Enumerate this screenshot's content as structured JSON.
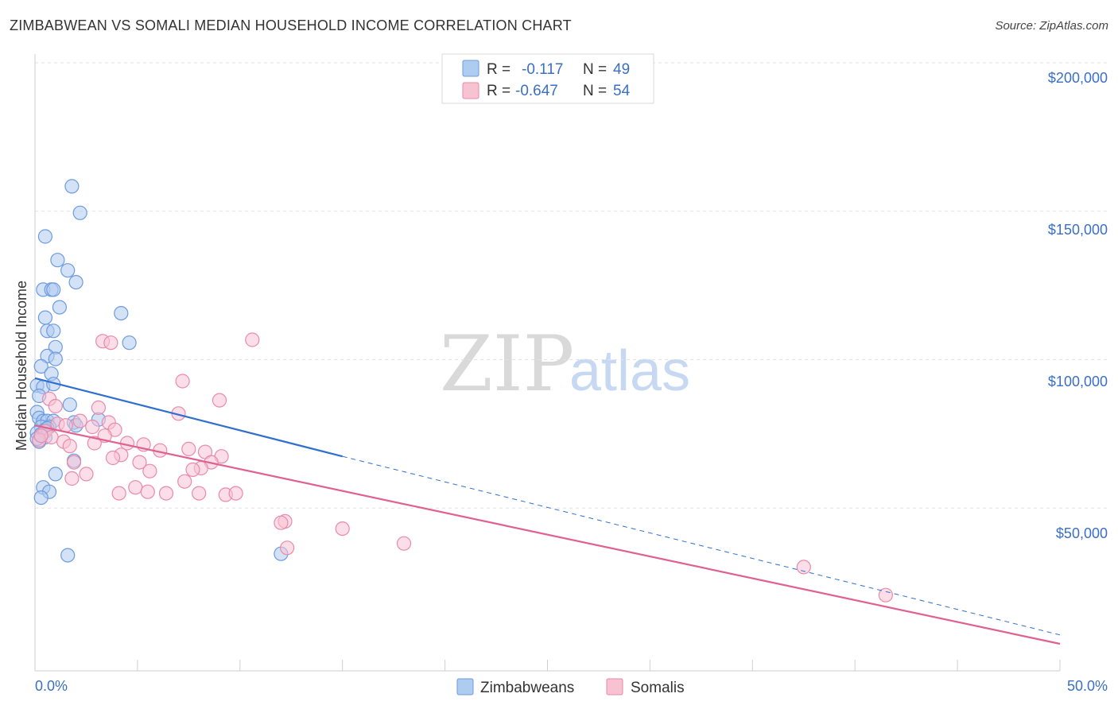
{
  "header": {
    "title": "ZIMBABWEAN VS SOMALI MEDIAN HOUSEHOLD INCOME CORRELATION CHART",
    "source": "Source: ZipAtlas.com"
  },
  "watermark": {
    "zip": "ZIP",
    "atlas": "atlas"
  },
  "colors": {
    "blue_fill": "#aecbf0",
    "blue_stroke": "#6d9be0",
    "blue_line": "#2f6fcf",
    "pink_fill": "#f7c3d3",
    "pink_stroke": "#e98aab",
    "pink_line": "#e0608f",
    "grid": "#e3e3e3",
    "axis_text": "#3b6fc4"
  },
  "legend": {
    "rows": [
      {
        "r_label": "R =",
        "r_value": "-0.117",
        "n_label": "N =",
        "n_value": "49"
      },
      {
        "r_label": "R =",
        "r_value": "-0.647",
        "n_label": "N =",
        "n_value": "54"
      }
    ]
  },
  "chart_data": {
    "type": "scatter",
    "title": "ZIMBABWEAN VS SOMALI MEDIAN HOUSEHOLD INCOME CORRELATION CHART",
    "xlabel": "",
    "ylabel": "Median Household Income",
    "xlim": [
      0,
      50
    ],
    "ylim": [
      0,
      205000
    ],
    "x_tick_labels": [
      "0.0%",
      "50.0%"
    ],
    "y_ticks": [
      50000,
      100000,
      150000,
      200000
    ],
    "y_tick_labels": [
      "$50,000",
      "$100,000",
      "$150,000",
      "$200,000"
    ],
    "grid": true,
    "legend_position": "top-center",
    "series": [
      {
        "name": "Zimbabweans",
        "color": "#aecbf0",
        "r": -0.117,
        "n": 49,
        "trend": {
          "x0": 0.0,
          "y0": 98000,
          "x1": 15.0,
          "y1": 71500,
          "dashed_x1": 50.0,
          "dashed_y1": 11000
        },
        "points": [
          [
            1.8,
            163000
          ],
          [
            2.2,
            154000
          ],
          [
            0.5,
            146000
          ],
          [
            1.1,
            138000
          ],
          [
            1.6,
            134500
          ],
          [
            2.0,
            130500
          ],
          [
            0.4,
            128000
          ],
          [
            0.8,
            128000
          ],
          [
            0.9,
            128000
          ],
          [
            1.2,
            122000
          ],
          [
            4.2,
            120000
          ],
          [
            0.5,
            118500
          ],
          [
            0.6,
            114000
          ],
          [
            0.9,
            114000
          ],
          [
            4.6,
            110000
          ],
          [
            1.0,
            108500
          ],
          [
            0.6,
            105500
          ],
          [
            1.0,
            104500
          ],
          [
            0.3,
            102000
          ],
          [
            0.8,
            99500
          ],
          [
            0.1,
            95500
          ],
          [
            0.4,
            95000
          ],
          [
            0.9,
            96000
          ],
          [
            0.2,
            92000
          ],
          [
            1.7,
            89000
          ],
          [
            0.1,
            86500
          ],
          [
            0.2,
            84500
          ],
          [
            0.4,
            83500
          ],
          [
            0.6,
            83500
          ],
          [
            0.9,
            83500
          ],
          [
            1.9,
            83000
          ],
          [
            3.1,
            84000
          ],
          [
            0.3,
            81500
          ],
          [
            0.5,
            80500
          ],
          [
            0.7,
            81500
          ],
          [
            2.0,
            82000
          ],
          [
            0.1,
            79500
          ],
          [
            0.3,
            79000
          ],
          [
            0.5,
            78000
          ],
          [
            0.2,
            76500
          ],
          [
            1.9,
            70000
          ],
          [
            1.0,
            65500
          ],
          [
            0.4,
            61000
          ],
          [
            0.7,
            59500
          ],
          [
            0.3,
            57500
          ],
          [
            1.6,
            38000
          ],
          [
            12.0,
            38500
          ],
          [
            0.1,
            77500
          ],
          [
            0.6,
            81000
          ]
        ]
      },
      {
        "name": "Somalis",
        "color": "#f7c3d3",
        "r": -0.647,
        "n": 54,
        "trend": {
          "x0": 0.0,
          "y0": 82000,
          "x1": 50.0,
          "y1": 8000
        },
        "points": [
          [
            10.6,
            111000
          ],
          [
            3.3,
            110500
          ],
          [
            3.7,
            110000
          ],
          [
            7.2,
            97000
          ],
          [
            9.0,
            90500
          ],
          [
            0.7,
            91000
          ],
          [
            1.0,
            88500
          ],
          [
            3.1,
            88000
          ],
          [
            7.0,
            86000
          ],
          [
            1.1,
            82500
          ],
          [
            1.5,
            82000
          ],
          [
            2.2,
            83500
          ],
          [
            2.8,
            81500
          ],
          [
            3.6,
            83000
          ],
          [
            3.9,
            80500
          ],
          [
            0.5,
            80000
          ],
          [
            0.8,
            78000
          ],
          [
            3.4,
            78500
          ],
          [
            0.2,
            77000
          ],
          [
            1.4,
            76500
          ],
          [
            1.7,
            75000
          ],
          [
            2.9,
            76000
          ],
          [
            4.5,
            76000
          ],
          [
            5.3,
            75500
          ],
          [
            6.1,
            73500
          ],
          [
            7.5,
            74000
          ],
          [
            8.3,
            73000
          ],
          [
            4.2,
            72000
          ],
          [
            3.8,
            71000
          ],
          [
            9.1,
            71500
          ],
          [
            5.1,
            69500
          ],
          [
            8.6,
            69500
          ],
          [
            1.9,
            69500
          ],
          [
            8.1,
            67500
          ],
          [
            7.7,
            67000
          ],
          [
            5.6,
            66500
          ],
          [
            2.5,
            65500
          ],
          [
            1.8,
            64000
          ],
          [
            7.3,
            63000
          ],
          [
            4.9,
            61000
          ],
          [
            4.1,
            59000
          ],
          [
            5.5,
            59500
          ],
          [
            6.4,
            59000
          ],
          [
            8.0,
            59000
          ],
          [
            9.3,
            58500
          ],
          [
            9.8,
            59000
          ],
          [
            12.2,
            49500
          ],
          [
            12.0,
            49000
          ],
          [
            15.0,
            47000
          ],
          [
            18.0,
            42000
          ],
          [
            12.3,
            40500
          ],
          [
            37.5,
            34000
          ],
          [
            41.5,
            24500
          ],
          [
            0.3,
            78500
          ]
        ]
      }
    ]
  },
  "bottom_legend": {
    "items": [
      {
        "label": "Zimbabweans"
      },
      {
        "label": "Somalis"
      }
    ]
  }
}
